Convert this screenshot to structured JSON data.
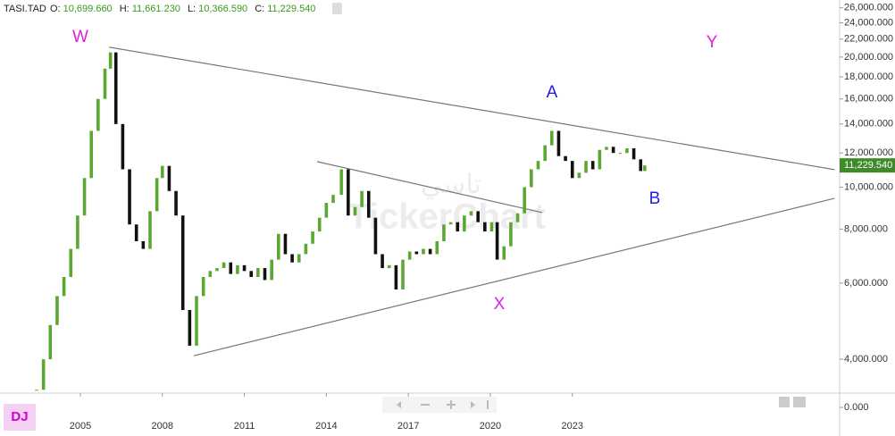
{
  "header": {
    "symbol": "TASI.TAD",
    "items": [
      {
        "label": "O:",
        "value": "10,699.660"
      },
      {
        "label": "H:",
        "value": "11,661.230"
      },
      {
        "label": "L:",
        "value": "10,366.590"
      },
      {
        "label": "C:",
        "value": "11,229.540"
      }
    ]
  },
  "badge": "DJ",
  "watermark": {
    "arabic": "تاسي",
    "brand": "TickerChart"
  },
  "chart_data": {
    "type": "candlestick",
    "log_scale": true,
    "xlim": [
      2002.06,
      2032.78
    ],
    "xticks": [
      2005,
      2008,
      2011,
      2014,
      2017,
      2020,
      2023
    ],
    "ylim": [
      3340,
      27100
    ],
    "yticks": [
      {
        "value": 4000,
        "label": "4,000.000"
      },
      {
        "value": 6000,
        "label": "6,000.000"
      },
      {
        "value": 8000,
        "label": "8,000.000"
      },
      {
        "value": 10000,
        "label": "10,000.000"
      },
      {
        "value": 12000,
        "label": "12,000.000"
      },
      {
        "value": 14000,
        "label": "14,000.000"
      },
      {
        "value": 16000,
        "label": "16,000.000"
      },
      {
        "value": 18000,
        "label": "18,000.000"
      },
      {
        "value": 20000,
        "label": "20,000.000"
      },
      {
        "value": 22000,
        "label": "22,000.000"
      },
      {
        "value": 24000,
        "label": "24,000.000"
      },
      {
        "value": 26000,
        "label": "26,000.000"
      }
    ],
    "volume_yticks": [
      {
        "value": 0,
        "label": "0.000"
      }
    ],
    "up_color": "#5aa832",
    "down_color": "#111111",
    "last_value": {
      "value": 11229.54,
      "label": "11,229.540"
    },
    "x": [
      2003.4,
      2003.65,
      2003.9,
      2004.15,
      2004.4,
      2004.65,
      2004.9,
      2005.15,
      2005.4,
      2005.65,
      2005.9,
      2006.1,
      2006.3,
      2006.55,
      2006.8,
      2007.05,
      2007.3,
      2007.55,
      2007.8,
      2008.0,
      2008.25,
      2008.5,
      2008.75,
      2009.0,
      2009.25,
      2009.5,
      2009.75,
      2010.0,
      2010.25,
      2010.5,
      2010.75,
      2011.0,
      2011.25,
      2011.5,
      2011.75,
      2012.0,
      2012.25,
      2012.5,
      2012.75,
      2013.0,
      2013.25,
      2013.5,
      2013.75,
      2014.0,
      2014.25,
      2014.55,
      2014.8,
      2015.05,
      2015.3,
      2015.55,
      2015.8,
      2016.05,
      2016.3,
      2016.55,
      2016.8,
      2017.05,
      2017.3,
      2017.55,
      2017.8,
      2018.05,
      2018.3,
      2018.55,
      2018.8,
      2019.05,
      2019.3,
      2019.55,
      2019.8,
      2020.05,
      2020.25,
      2020.5,
      2020.75,
      2021.0,
      2021.25,
      2021.5,
      2021.75,
      2022.0,
      2022.25,
      2022.5,
      2022.75,
      2023.0,
      2023.25,
      2023.5,
      2023.75,
      2024.0,
      2024.25,
      2024.5,
      2024.75,
      2025.0,
      2025.25,
      2025.5,
      2025.65
    ],
    "close": [
      3400,
      4000,
      4800,
      5600,
      6200,
      7200,
      8600,
      10500,
      13500,
      16000,
      18800,
      20500,
      14000,
      11000,
      8200,
      7500,
      7200,
      8800,
      10500,
      11200,
      9800,
      8600,
      5200,
      4300,
      5600,
      6200,
      6400,
      6500,
      6700,
      6300,
      6600,
      6400,
      6200,
      6500,
      6100,
      6800,
      7800,
      7000,
      6700,
      7000,
      7400,
      7900,
      8500,
      9200,
      9600,
      11000,
      8600,
      9000,
      9800,
      8500,
      7000,
      6500,
      6600,
      5800,
      6800,
      7100,
      7000,
      7200,
      7000,
      7500,
      8200,
      8300,
      7900,
      8600,
      8800,
      8300,
      7900,
      8300,
      6800,
      7300,
      8300,
      8700,
      10000,
      11000,
      11500,
      12500,
      13500,
      11800,
      11500,
      10500,
      10800,
      11500,
      11000,
      12200,
      12400,
      12000,
      12000,
      12300,
      11600,
      10900,
      11229.54
    ],
    "trendlines": [
      {
        "x": [
          2006.05,
          2032.6
        ],
        "y": [
          21080,
          10980
        ]
      },
      {
        "x": [
          2009.15,
          2032.6
        ],
        "y": [
          4076,
          9427
        ]
      },
      {
        "x": [
          2013.66,
          2021.9
        ],
        "y": [
          11460,
          8735
        ]
      }
    ],
    "annotations": [
      {
        "text": "W",
        "color": "#e020e0"
      },
      {
        "text": "Y",
        "color": "#e020e0"
      },
      {
        "text": "A",
        "color": "#1f1fe0"
      },
      {
        "text": "B",
        "color": "#1f1fe0"
      },
      {
        "text": "X",
        "color": "#e020e0"
      }
    ]
  }
}
